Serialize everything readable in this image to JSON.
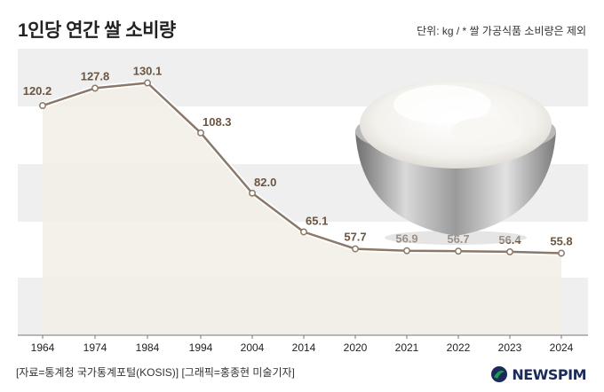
{
  "header": {
    "title": "1인당 연간 쌀 소비량",
    "unit_note": "단위: kg / * 쌀 가공식품 소비량은 제외"
  },
  "footer": {
    "source": "[자료=통계청 국가통계포털(KOSIS)] [그래픽=홍종현 미술기자]",
    "logo_text": "NEWSPIM"
  },
  "colors": {
    "line": "#8a7868",
    "area": "#f2eee6",
    "band": "#efefef",
    "label": "#6b5540",
    "logo_mark": "#1f9a57"
  },
  "image": {
    "icon": "rice-bowl-icon"
  },
  "chart_data": {
    "type": "line",
    "categories": [
      "1964",
      "1974",
      "1984",
      "1994",
      "2004",
      "2014",
      "2020",
      "2021",
      "2022",
      "2023",
      "2024"
    ],
    "values": [
      120.2,
      127.8,
      130.1,
      108.3,
      82.0,
      65.1,
      57.7,
      56.9,
      56.7,
      56.4,
      55.8
    ],
    "data_labels": [
      "120.2",
      "127.8",
      "130.1",
      "108.3",
      "82.0",
      "65.1",
      "57.7",
      "56.9",
      "56.7",
      "56.4",
      "55.8"
    ],
    "ylim": [
      20,
      145
    ],
    "grid": "horizontal bands",
    "legend": "none"
  }
}
